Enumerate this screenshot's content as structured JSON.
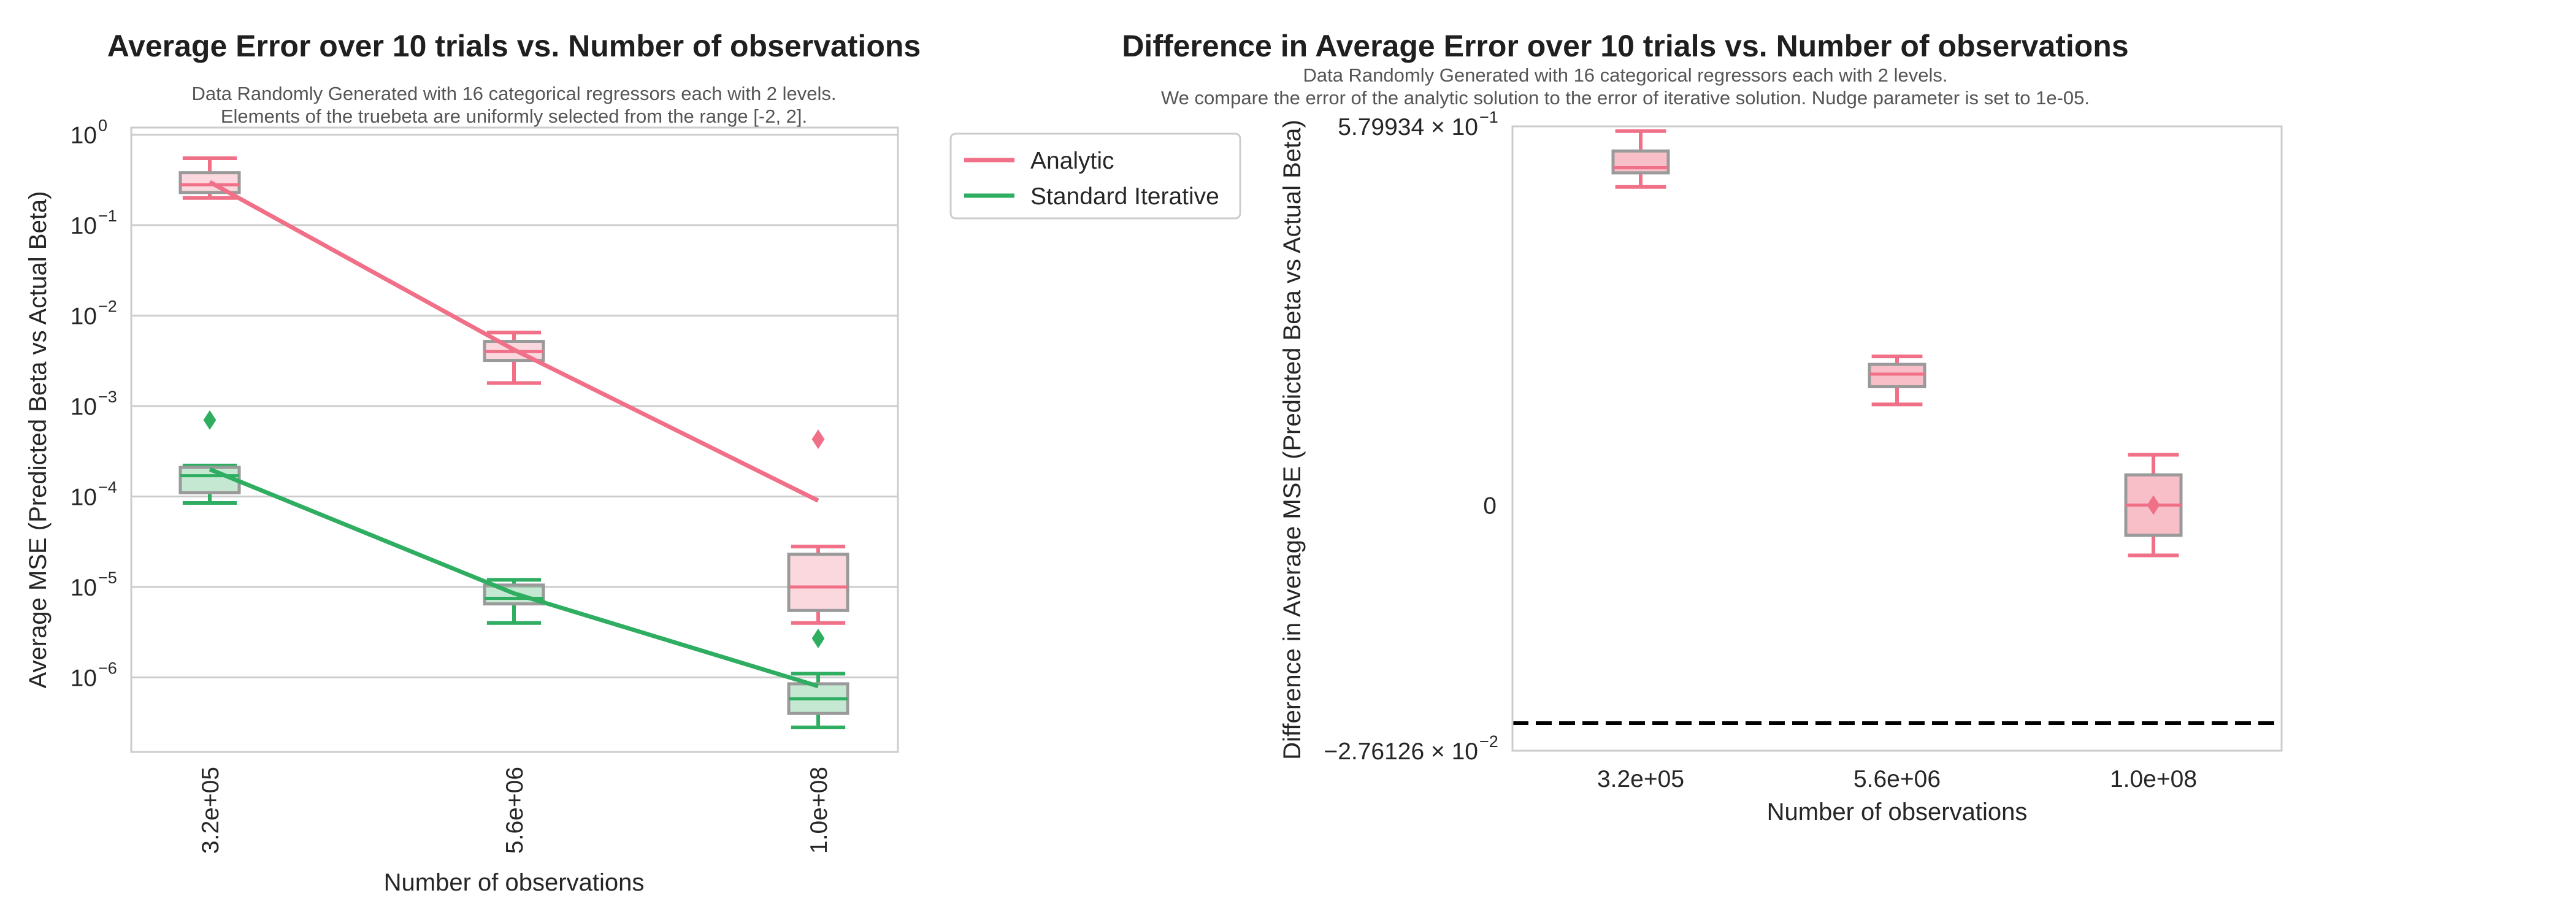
{
  "colors": {
    "analytic": "#f07088",
    "standard_iterative": "#2fae62",
    "box_edge": "#9a9a9a",
    "grid": "#cccccc",
    "frame": "#cccccc",
    "zero_line": "#000000"
  },
  "chart_data": [
    {
      "type": "box",
      "title": "Average Error over 10 trials vs. Number of observations",
      "subtitle_lines": [
        "Data Randomly Generated with 16 categorical regressors each with 2 levels.",
        "Elements of the truebeta are uniformly selected from the range [-2, 2]."
      ],
      "xlabel": "Number of observations",
      "ylabel": "Average MSE (Predicted Beta vs Actual Beta)",
      "yscale": "log",
      "ylim": [
        1.5e-07,
        1.2
      ],
      "grid": true,
      "categories": [
        "3.2e+05",
        "5.6e+06",
        "1.0e+08"
      ],
      "ytick_labels": [
        {
          "base": "10",
          "exp": "0",
          "value": 1
        },
        {
          "base": "10",
          "exp": "−1",
          "value": 0.1
        },
        {
          "base": "10",
          "exp": "−2",
          "value": 0.01
        },
        {
          "base": "10",
          "exp": "−3",
          "value": 0.001
        },
        {
          "base": "10",
          "exp": "−4",
          "value": 0.0001
        },
        {
          "base": "10",
          "exp": "−5",
          "value": 1e-05
        },
        {
          "base": "10",
          "exp": "−6",
          "value": 1e-06
        }
      ],
      "legend": {
        "placement": "outside upper right",
        "entries": [
          {
            "label": "Analytic",
            "color_key": "analytic"
          },
          {
            "label": "Standard Iterative",
            "color_key": "standard_iterative"
          }
        ]
      },
      "series": [
        {
          "name": "Analytic",
          "color_key": "analytic",
          "boxes": [
            {
              "whislo": 0.2,
              "q1": 0.23,
              "med": 0.28,
              "q3": 0.38,
              "whishi": 0.55,
              "fliers": []
            },
            {
              "whislo": 0.0018,
              "q1": 0.0032,
              "med": 0.004,
              "q3": 0.0052,
              "whishi": 0.0065,
              "fliers": []
            },
            {
              "whislo": 4e-06,
              "q1": 5.5e-06,
              "med": 1e-05,
              "q3": 2.3e-05,
              "whishi": 2.8e-05,
              "fliers": [
                0.00043
              ]
            }
          ],
          "mean_line": [
            0.3,
            0.0042,
            9e-05
          ]
        },
        {
          "name": "Standard Iterative",
          "color_key": "standard_iterative",
          "boxes": [
            {
              "whislo": 8.5e-05,
              "q1": 0.00011,
              "med": 0.00017,
              "q3": 0.00021,
              "whishi": 0.00022,
              "fliers": [
                0.0007
              ]
            },
            {
              "whislo": 4e-06,
              "q1": 6.5e-06,
              "med": 7.5e-06,
              "q3": 1.05e-05,
              "whishi": 1.2e-05,
              "fliers": []
            },
            {
              "whislo": 2.8e-07,
              "q1": 4e-07,
              "med": 5.8e-07,
              "q3": 8.5e-07,
              "whishi": 1.1e-06,
              "fliers": [
                2.7e-06
              ]
            }
          ],
          "mean_line": [
            0.0002,
            8.5e-06,
            8e-07
          ]
        }
      ]
    },
    {
      "type": "box",
      "title": "Difference in Average Error over 10 trials vs. Number of observations",
      "subtitle_lines": [
        "Data Randomly Generated with 16 categorical regressors each with 2 levels.",
        "We compare the error of the analytic solution to the error of iterative solution. Nudge parameter is set to 1e-05."
      ],
      "xlabel": "Number of observations",
      "ylabel": "Difference in Average MSE (Predicted Beta vs Actual Beta)",
      "yscale": "symlog",
      "ylim": [
        -0.0276126,
        0.579934
      ],
      "grid": false,
      "categories": [
        "3.2e+05",
        "5.6e+06",
        "1.0e+08"
      ],
      "ytick_labels": [
        {
          "text": "5.79934 × 10",
          "exp": "−1",
          "value": 0.579934
        },
        {
          "text": "0",
          "exp": "",
          "value": 0
        },
        {
          "text": "−2.76126 × 10",
          "exp": "−2",
          "value": -0.0276126
        }
      ],
      "zero_line": true,
      "series": [
        {
          "name": "",
          "color_key": "analytic",
          "boxes": [
            {
              "whislo": 0.145,
              "q1": 0.2,
              "med": 0.225,
              "q3": 0.33,
              "whishi": 0.52,
              "fliers": []
            },
            {
              "whislo": 0.001,
              "q1": 0.0015,
              "med": 0.002,
              "q3": 0.0025,
              "whishi": 0.003,
              "fliers": []
            },
            {
              "whislo": -0.0005,
              "q1": -0.0003,
              "med": 0.0,
              "q3": 0.0003,
              "whishi": 0.0005,
              "fliers": [
                0.0
              ]
            }
          ]
        }
      ]
    }
  ]
}
